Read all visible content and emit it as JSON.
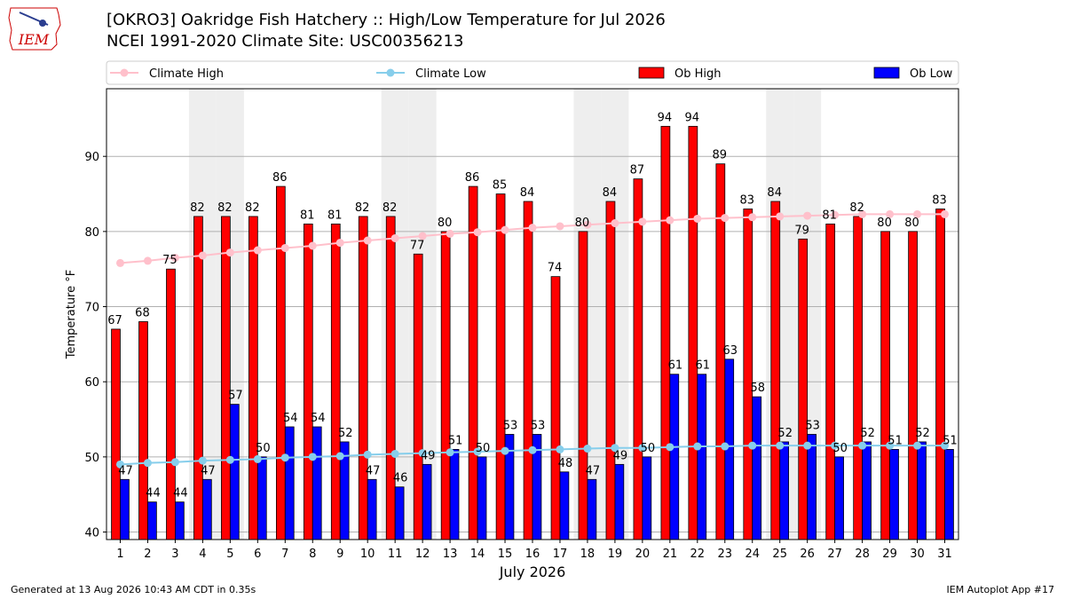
{
  "header": {
    "title": "[OKRO3] Oakridge Fish Hatchery :: High/Low Temperature for Jul 2026",
    "subtitle": "NCEI 1991-2020 Climate Site: USC00356213"
  },
  "logo": {
    "text": "IEM",
    "color": "#cc0000"
  },
  "footer": {
    "left": "Generated at 13 Aug 2026 10:43 AM CDT in 0.35s",
    "right": "IEM Autoplot App #17"
  },
  "colors": {
    "ob_high": "#ff0000",
    "ob_low": "#0000ff",
    "climate_high": "#ffc0cb",
    "climate_low": "#87ceeb",
    "weekend_shade": "#eeeeee",
    "grid": "#b0b0b0"
  },
  "chart_data": {
    "type": "bar",
    "xlabel": "July 2026",
    "ylabel": "Temperature °F",
    "ylim": [
      39,
      99
    ],
    "yticks": [
      40,
      50,
      60,
      70,
      80,
      90
    ],
    "grid": "horizontal",
    "legend_position": "top",
    "shaded_days": [
      4,
      5,
      11,
      12,
      18,
      19,
      25,
      26
    ],
    "categories": [
      "1",
      "2",
      "3",
      "4",
      "5",
      "6",
      "7",
      "8",
      "9",
      "10",
      "11",
      "12",
      "13",
      "14",
      "15",
      "16",
      "17",
      "18",
      "19",
      "20",
      "21",
      "22",
      "23",
      "24",
      "25",
      "26",
      "27",
      "28",
      "29",
      "30",
      "31"
    ],
    "series": [
      {
        "name": "Climate High",
        "kind": "line",
        "values": [
          75.8,
          76.1,
          76.5,
          76.8,
          77.2,
          77.5,
          77.8,
          78.1,
          78.5,
          78.8,
          79.1,
          79.4,
          79.7,
          79.9,
          80.2,
          80.5,
          80.7,
          80.9,
          81.1,
          81.3,
          81.5,
          81.7,
          81.8,
          81.9,
          82.0,
          82.1,
          82.2,
          82.3,
          82.3,
          82.3,
          82.3
        ]
      },
      {
        "name": "Climate Low",
        "kind": "line",
        "values": [
          49.0,
          49.2,
          49.3,
          49.5,
          49.6,
          49.7,
          49.9,
          50.0,
          50.1,
          50.3,
          50.4,
          50.5,
          50.6,
          50.7,
          50.8,
          50.9,
          51.0,
          51.1,
          51.2,
          51.2,
          51.3,
          51.4,
          51.4,
          51.5,
          51.5,
          51.5,
          51.5,
          51.5,
          51.5,
          51.5,
          51.5
        ]
      },
      {
        "name": "Ob High",
        "kind": "bar",
        "values": [
          67,
          68,
          75,
          82,
          82,
          82,
          86,
          81,
          81,
          82,
          82,
          77,
          80,
          86,
          85,
          84,
          74,
          80,
          84,
          87,
          94,
          94,
          89,
          83,
          84,
          79,
          81,
          82,
          80,
          80,
          83
        ]
      },
      {
        "name": "Ob Low",
        "kind": "bar",
        "values": [
          47,
          44,
          44,
          47,
          57,
          50,
          54,
          54,
          52,
          47,
          46,
          49,
          51,
          50,
          53,
          53,
          48,
          47,
          49,
          50,
          61,
          61,
          63,
          58,
          52,
          53,
          50,
          52,
          51,
          52,
          51
        ]
      }
    ]
  }
}
